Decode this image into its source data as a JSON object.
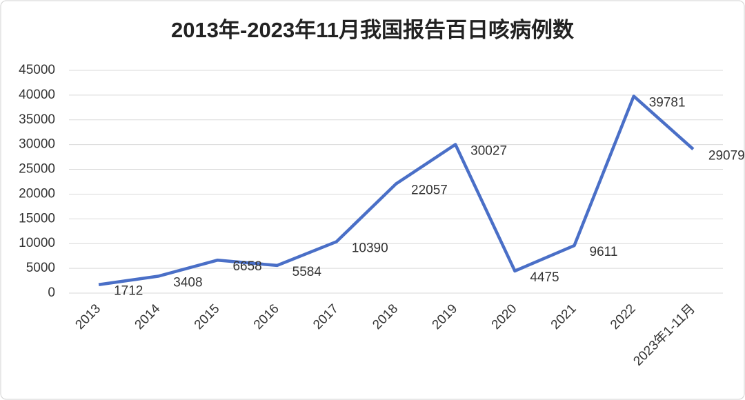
{
  "chart_data": {
    "type": "line",
    "title": "2013年-2023年11月我国报告百日咳病例数",
    "categories": [
      "2013",
      "2014",
      "2015",
      "2016",
      "2017",
      "2018",
      "2019",
      "2020",
      "2021",
      "2022",
      "2023年1-11月"
    ],
    "series": [
      {
        "name": "病例数",
        "color": "#4a6fc7",
        "values": [
          1712,
          3408,
          6658,
          5584,
          10390,
          22057,
          30027,
          4475,
          9611,
          39781,
          29079
        ]
      }
    ],
    "ylim": [
      0,
      45000
    ],
    "yticks": [
      0,
      5000,
      10000,
      15000,
      20000,
      25000,
      30000,
      35000,
      40000,
      45000
    ],
    "grid": true
  }
}
